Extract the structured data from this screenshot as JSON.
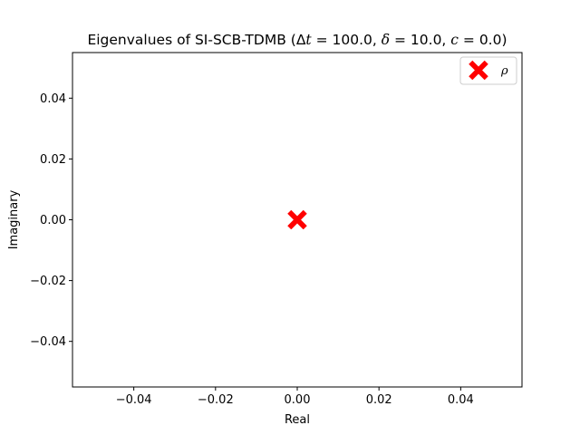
{
  "chart_data": {
    "type": "scatter",
    "title": "Eigenvalues of SI-SCB-TDMB (Δt = 100.0, δ = 10.0, c = 0.0)",
    "title_parts": [
      "Eigenvalues of SI-SCB-TDMB (",
      "Δ",
      "t",
      " = 100.0, ",
      "δ",
      " = 10.0, ",
      "c",
      " = 0.0)"
    ],
    "xlabel": "Real",
    "ylabel": "Imaginary",
    "xlim": [
      -0.055,
      0.055
    ],
    "ylim": [
      -0.055,
      0.055
    ],
    "xticks": [
      -0.04,
      -0.02,
      0.0,
      0.02,
      0.04
    ],
    "yticks": [
      -0.04,
      -0.02,
      0.0,
      0.02,
      0.04
    ],
    "xtick_labels": [
      "−0.04",
      "−0.02",
      "0.00",
      "0.02",
      "0.04"
    ],
    "ytick_labels": [
      "−0.04",
      "−0.02",
      "0.00",
      "0.02",
      "0.04"
    ],
    "grid": false,
    "legend_position": "top-right",
    "series": [
      {
        "name": "ρ",
        "marker": "X",
        "color": "#ff0000",
        "points": [
          {
            "x": 0.0,
            "y": 0.0
          }
        ]
      }
    ]
  }
}
